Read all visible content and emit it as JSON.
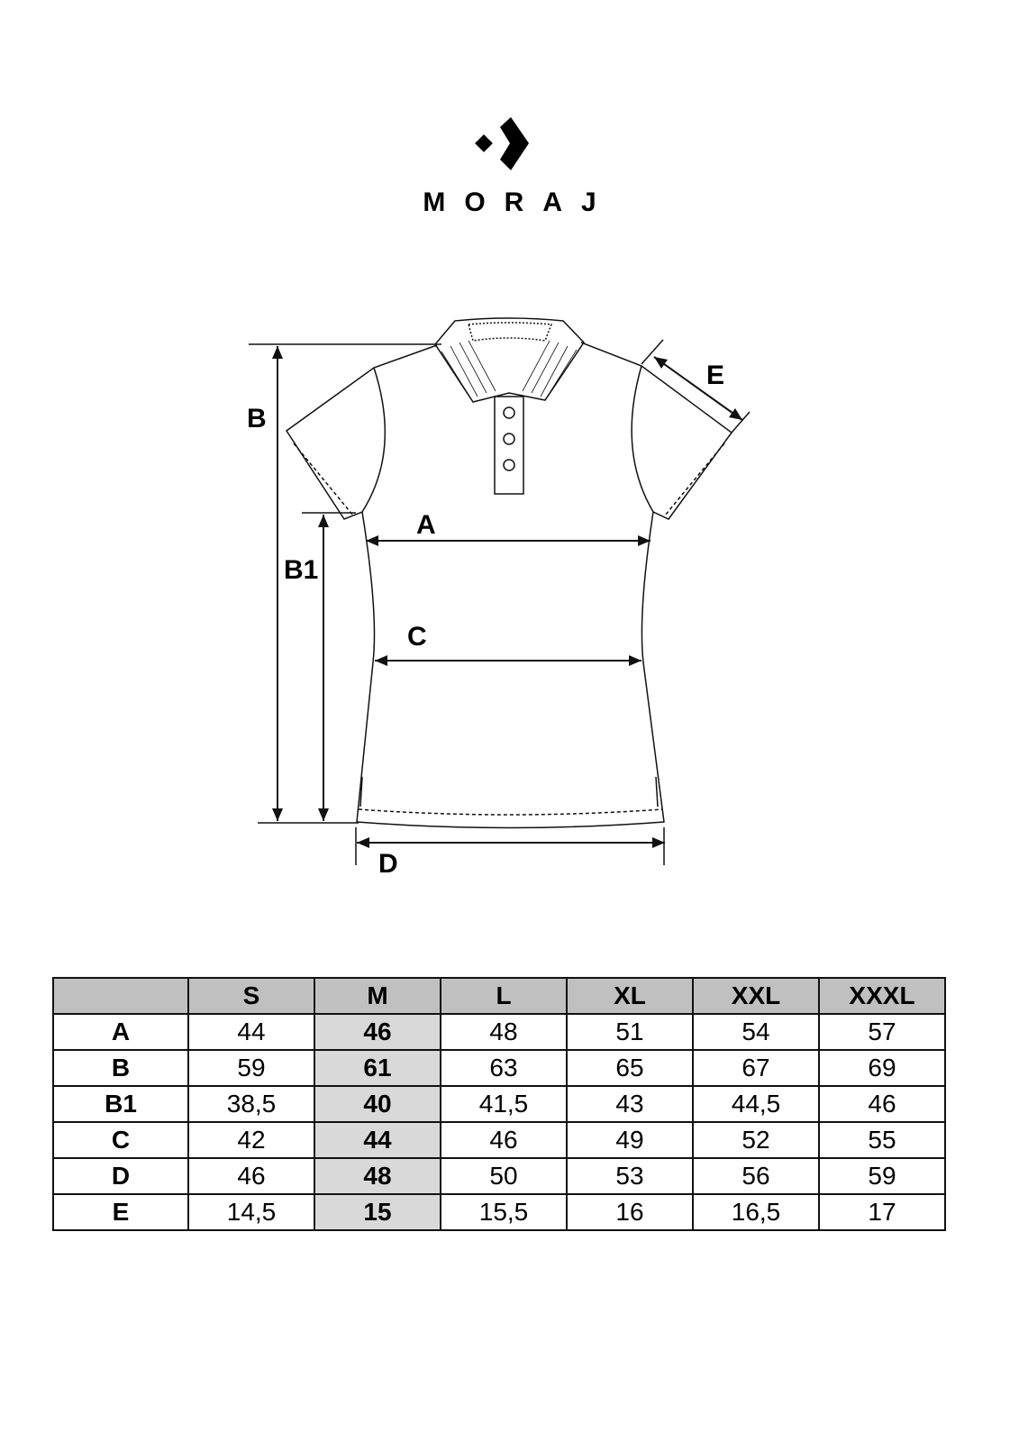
{
  "brand": {
    "name": "MORAJ",
    "logo_icon": "moraj-chevron-logo"
  },
  "diagram": {
    "labels": [
      "A",
      "B",
      "B1",
      "C",
      "D",
      "E"
    ]
  },
  "table": {
    "columns": [
      "",
      "S",
      "M",
      "L",
      "XL",
      "XXL",
      "XXXL"
    ],
    "highlight_column": "M",
    "header_color": "#c0c0c0",
    "highlight_color": "#d9d9d9",
    "rows": [
      {
        "label": "A",
        "values": [
          "44",
          "46",
          "48",
          "51",
          "54",
          "57"
        ]
      },
      {
        "label": "B",
        "values": [
          "59",
          "61",
          "63",
          "65",
          "67",
          "69"
        ]
      },
      {
        "label": "B1",
        "values": [
          "38,5",
          "40",
          "41,5",
          "43",
          "44,5",
          "46"
        ]
      },
      {
        "label": "C",
        "values": [
          "42",
          "44",
          "46",
          "49",
          "52",
          "55"
        ]
      },
      {
        "label": "D",
        "values": [
          "46",
          "48",
          "50",
          "53",
          "56",
          "59"
        ]
      },
      {
        "label": "E",
        "values": [
          "14,5",
          "15",
          "15,5",
          "16",
          "16,5",
          "17"
        ]
      }
    ]
  }
}
